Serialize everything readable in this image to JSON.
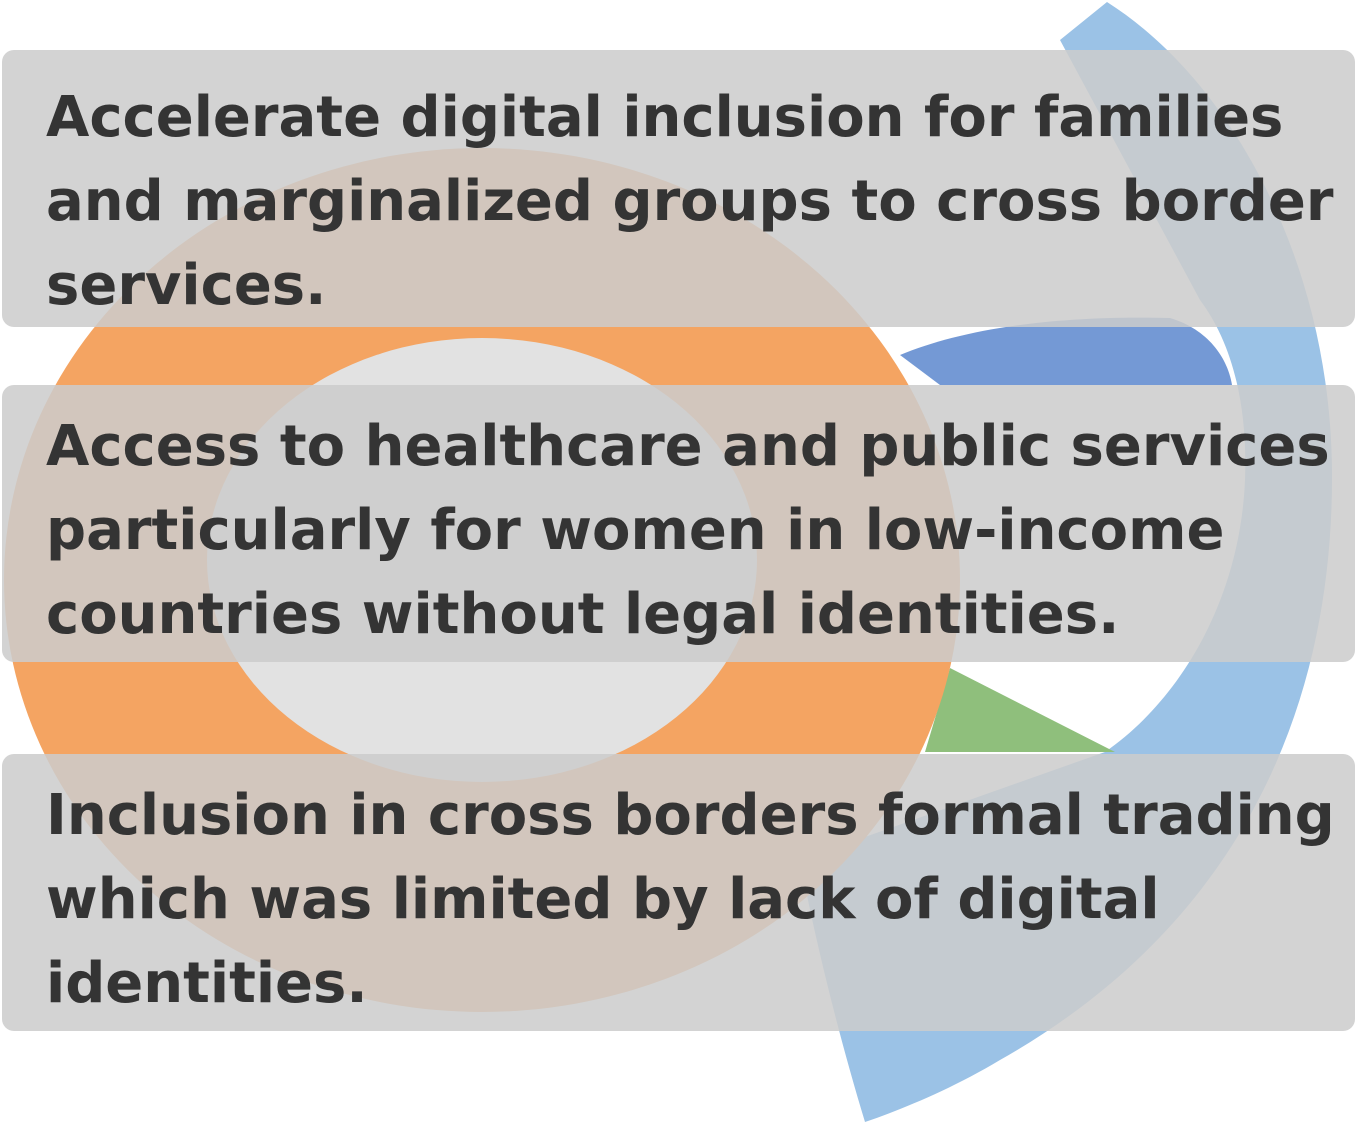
{
  "colors": {
    "page_background": "#ffffff",
    "orange": "#f4a462",
    "light_blue": "#9bc2e6",
    "mid_blue": "#7499d5",
    "green": "#8fbf7c",
    "inner_gray": "#e2e2e2",
    "card_fill": "#cccccc",
    "text": "#343434"
  },
  "cards": [
    {
      "text": "Accelerate digital inclusion for families and marginalized groups to cross border services."
    },
    {
      "text": "Access to healthcare and public services particularly for women in low-income countries without legal identities."
    },
    {
      "text": "Inclusion in cross borders formal trading which was limited by lack of digital identities."
    }
  ]
}
